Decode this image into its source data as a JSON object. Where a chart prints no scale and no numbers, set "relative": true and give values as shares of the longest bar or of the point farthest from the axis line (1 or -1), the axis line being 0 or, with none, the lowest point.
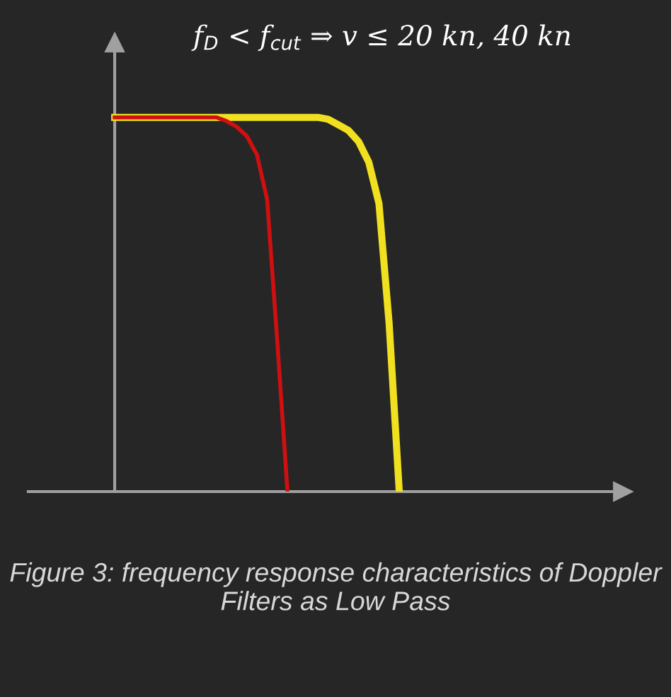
{
  "chart_data": {
    "type": "line",
    "relative": true,
    "title": "f$_{D}$ < f$_{cut}$ ⇒ v ≤ 20 kn, 40 kn",
    "annotations": [
      "Figure 3: frequency response characteristics of Doppler Filters as Low Pass"
    ],
    "categories": [
      null,
      null,
      null,
      null,
      null,
      null,
      null,
      null,
      null,
      null,
      null,
      null,
      null,
      null,
      null,
      null,
      null,
      null,
      null,
      null,
      null,
      null,
      null,
      null,
      null,
      null,
      null,
      null,
      null
    ],
    "legend": false,
    "marker": "none",
    "line_style": "solid",
    "series": [
      {
        "color": "#d01010",
        "values": [
          1,
          1,
          1,
          1,
          1,
          1,
          1,
          1,
          1,
          1,
          1,
          0.99,
          0.975,
          0.95,
          0.9,
          0.78,
          0.4,
          0,
          null,
          null,
          null,
          null,
          null,
          null,
          null,
          null,
          null,
          null,
          null
        ]
      },
      {
        "color": "#f0e020",
        "values": [
          1,
          1,
          1,
          1,
          1,
          1,
          1,
          1,
          1,
          1,
          1,
          1,
          1,
          1,
          1,
          1,
          1,
          1,
          1,
          1,
          1,
          0.995,
          0.98,
          0.965,
          0.935,
          0.88,
          0.77,
          0.45,
          0
        ]
      }
    ]
  }
}
